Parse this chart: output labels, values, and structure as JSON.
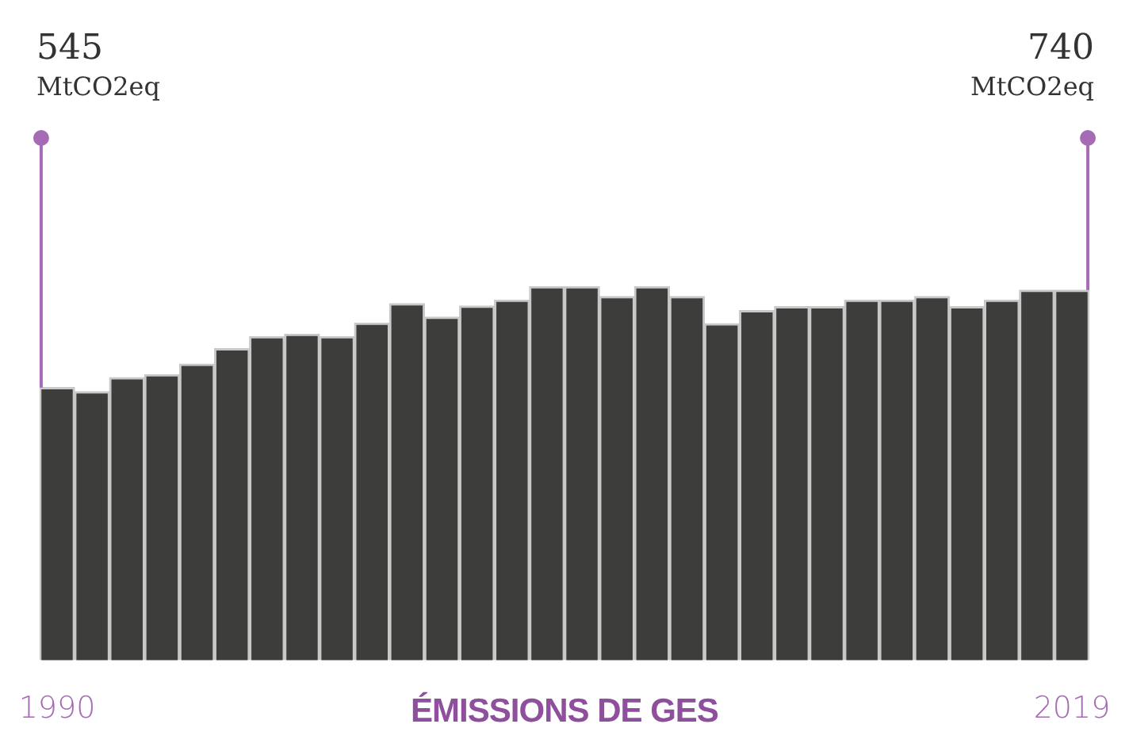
{
  "chart_data": {
    "type": "bar",
    "title": "ÉMISSIONS DE GES",
    "categories": [
      "1990",
      null,
      null,
      null,
      null,
      null,
      null,
      null,
      null,
      null,
      null,
      null,
      null,
      null,
      null,
      null,
      null,
      null,
      null,
      null,
      null,
      null,
      null,
      null,
      null,
      null,
      null,
      null,
      null,
      "2019"
    ],
    "values": [
      545,
      537,
      565,
      571,
      592,
      623,
      647,
      652,
      647,
      674,
      713,
      686,
      708,
      720,
      747,
      747,
      727,
      747,
      727,
      673,
      699,
      707,
      707,
      720,
      720,
      727,
      707,
      720,
      740,
      740
    ],
    "value_labels": [
      "545 MtCO2eq",
      null,
      null,
      null,
      null,
      null,
      null,
      null,
      null,
      null,
      null,
      null,
      null,
      null,
      null,
      null,
      null,
      null,
      null,
      null,
      null,
      null,
      null,
      null,
      null,
      null,
      null,
      null,
      null,
      "740 MtCO2eq"
    ],
    "color": "#3d3d3b",
    "tick_labels": "x"
  }
}
